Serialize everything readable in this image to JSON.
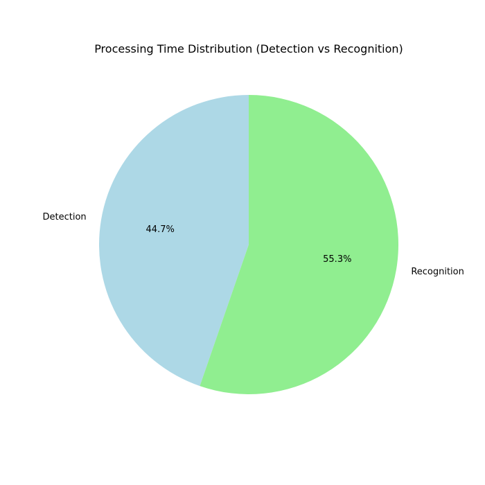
{
  "chart_data": {
    "type": "pie",
    "title": "Processing Time Distribution (Detection vs Recognition)",
    "categories": [
      "Detection",
      "Recognition"
    ],
    "values": [
      44.7,
      55.3
    ],
    "percent_labels": [
      "44.7%",
      "55.3%"
    ],
    "colors": [
      "#add8e6",
      "#90ee90"
    ],
    "start_angle_deg": 90,
    "direction": "counterclockwise",
    "legend": "none"
  }
}
